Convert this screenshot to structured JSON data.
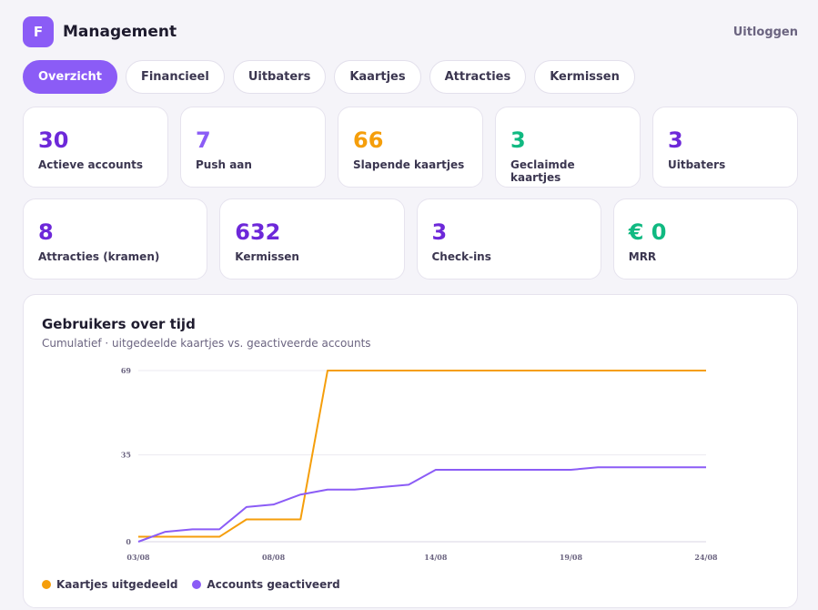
{
  "header": {
    "logo_letter": "F",
    "title": "Management",
    "logout_label": "Uitloggen"
  },
  "tabs": [
    {
      "label": "Overzicht",
      "active": true
    },
    {
      "label": "Financieel",
      "active": false
    },
    {
      "label": "Uitbaters",
      "active": false
    },
    {
      "label": "Kaartjes",
      "active": false
    },
    {
      "label": "Attracties",
      "active": false
    },
    {
      "label": "Kermissen",
      "active": false
    }
  ],
  "stats_row1": [
    {
      "value": "30",
      "label": "Actieve accounts",
      "color": "#6d28d9"
    },
    {
      "value": "7",
      "label": "Push aan",
      "color": "#8b5cf6"
    },
    {
      "value": "66",
      "label": "Slapende kaartjes",
      "color": "#f59e0b"
    },
    {
      "value": "3",
      "label": "Geclaimde kaartjes",
      "color": "#10b981"
    },
    {
      "value": "3",
      "label": "Uitbaters",
      "color": "#6d28d9"
    }
  ],
  "stats_row2": [
    {
      "value": "8",
      "label": "Attracties (kramen)",
      "color": "#6d28d9"
    },
    {
      "value": "632",
      "label": "Kermissen",
      "color": "#6d28d9"
    },
    {
      "value": "3",
      "label": "Check-ins",
      "color": "#6d28d9"
    },
    {
      "value": "€ 0",
      "label": "MRR",
      "color": "#10b981"
    }
  ],
  "chart": {
    "title": "Gebruikers over tijd",
    "subtitle": "Cumulatief · uitgedeelde kaartjes vs. geactiveerde accounts"
  },
  "chart_data": {
    "type": "line",
    "x": [
      "03/08",
      "04/08",
      "05/08",
      "06/08",
      "07/08",
      "08/08",
      "09/08",
      "10/08",
      "11/08",
      "12/08",
      "13/08",
      "14/08",
      "15/08",
      "16/08",
      "17/08",
      "18/08",
      "19/08",
      "20/08",
      "21/08",
      "22/08",
      "23/08",
      "24/08"
    ],
    "x_tick_labels": [
      "03/08",
      "08/08",
      "14/08",
      "19/08",
      "24/08"
    ],
    "y_ticks": [
      0,
      35,
      69
    ],
    "ylim": [
      0,
      69
    ],
    "grid": true,
    "legend_position": "bottom-left",
    "series": [
      {
        "name": "Kaartjes uitgedeeld",
        "color": "#f59e0b",
        "values": [
          2,
          2,
          2,
          2,
          9,
          9,
          9,
          69,
          69,
          69,
          69,
          69,
          69,
          69,
          69,
          69,
          69,
          69,
          69,
          69,
          69,
          69
        ]
      },
      {
        "name": "Accounts geactiveerd",
        "color": "#8b5cf6",
        "values": [
          0,
          4,
          5,
          5,
          14,
          15,
          19,
          21,
          21,
          22,
          23,
          29,
          29,
          29,
          29,
          29,
          29,
          30,
          30,
          30,
          30,
          30
        ]
      }
    ]
  }
}
